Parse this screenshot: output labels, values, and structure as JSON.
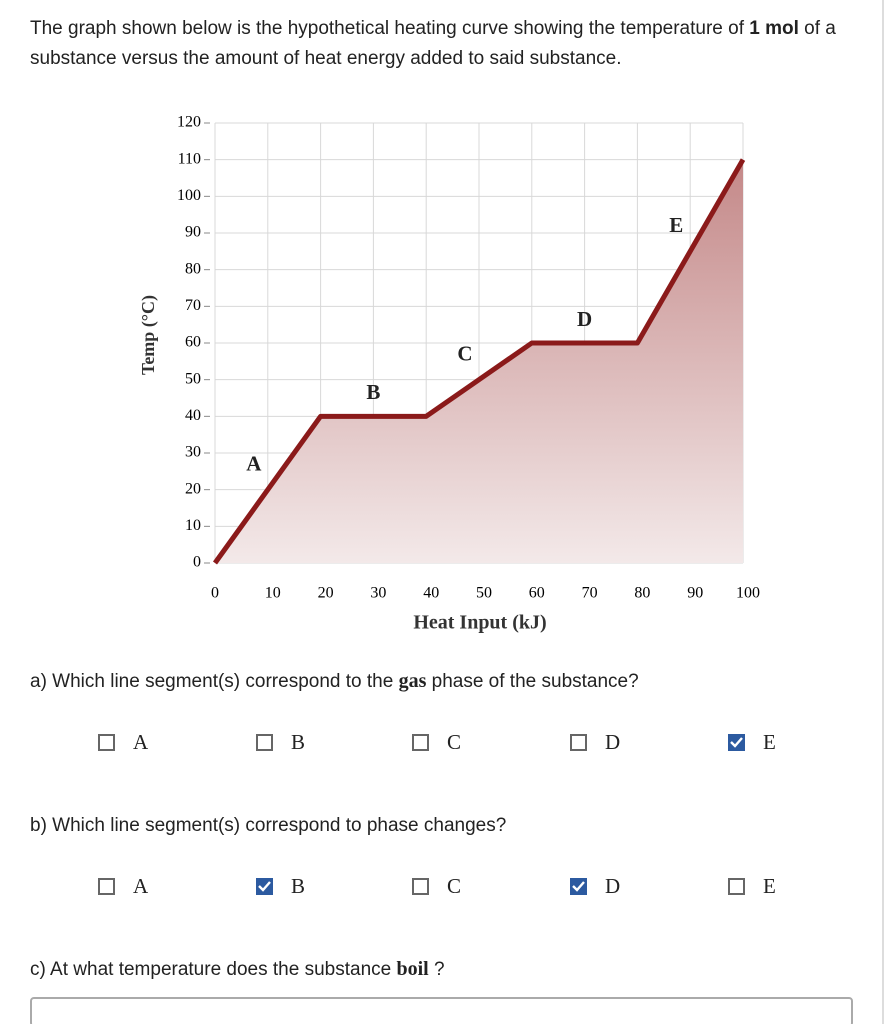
{
  "intro": [
    "The graph shown below is the hypothetical heating curve showing the temperature of ",
    "1 mol",
    " of a substance versus the amount of heat energy added to said substance."
  ],
  "chart_data": {
    "type": "line",
    "x_label": "Heat Input (kJ)",
    "y_label": "Temp (°C)",
    "x": [
      0,
      20,
      40,
      60,
      80,
      100
    ],
    "values": [
      0,
      40,
      40,
      60,
      60,
      110
    ],
    "annotations": [
      "A",
      "B",
      "C",
      "D",
      "E"
    ],
    "color": "#8b1a1a",
    "grid": true,
    "xlim": [
      0,
      100
    ],
    "xticks": [
      0,
      10,
      20,
      30,
      40,
      50,
      60,
      70,
      80,
      90,
      100
    ],
    "ylim": [
      0,
      120
    ],
    "yticks": [
      0,
      10,
      20,
      30,
      40,
      50,
      60,
      70,
      80,
      90,
      100,
      110,
      120
    ]
  },
  "questions": [
    {
      "text": [
        "a) Which line segment(s) correspond to the ",
        "gas",
        " phase of the substance?"
      ],
      "options": [
        "A",
        "B",
        "C",
        "D",
        "E"
      ],
      "checked": [
        false,
        false,
        false,
        false,
        true
      ]
    },
    {
      "text": [
        "b) Which line segment(s) correspond to phase changes?"
      ],
      "options": [
        "A",
        "B",
        "C",
        "D",
        "E"
      ],
      "checked": [
        false,
        true,
        false,
        true,
        false
      ]
    },
    {
      "text": [
        "c) At what temperature does the substance ",
        "boil",
        " ?"
      ]
    }
  ]
}
